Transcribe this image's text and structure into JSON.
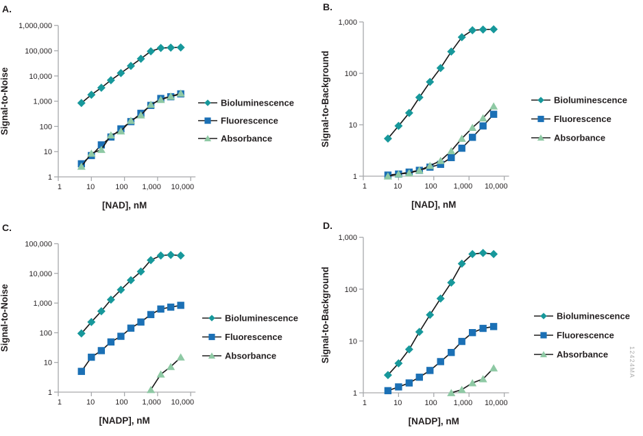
{
  "figure": {
    "watermark": "12424MA",
    "colors": {
      "bioluminescence": "#17989B",
      "fluorescence": "#1B70B5",
      "absorbance": "#8EC9A4",
      "series_line": "#1A1A1A",
      "axis_line": "#A6A8AB",
      "text": "#231F20",
      "watermark": "#ABABAB",
      "background": "#FFFFFF"
    }
  },
  "chart_data": [
    {
      "id": "A",
      "panel_label": "A.",
      "type": "line",
      "xscale": "log",
      "yscale": "log",
      "xlabel": "[NAD], nM",
      "ylabel": "Signal-to-Noise",
      "xlim": [
        1,
        20000
      ],
      "ylim": [
        1,
        1000000
      ],
      "grid": false,
      "legend_position": "right",
      "x_tick_labels": [
        "1",
        "10",
        "100",
        "1,000",
        "10,000"
      ],
      "y_tick_labels": [
        "1",
        "10",
        "100",
        "1,000",
        "10,000",
        "100,000",
        "1,000,000"
      ],
      "x": [
        5,
        10,
        20,
        39,
        78,
        156,
        313,
        625,
        1250,
        2500,
        5000
      ],
      "series": [
        {
          "name": "Bioluminescence",
          "marker": "diamond",
          "color": "#17989B",
          "values": [
            850,
            1800,
            3400,
            6800,
            13000,
            25000,
            48000,
            95000,
            128000,
            133000,
            135000
          ]
        },
        {
          "name": "Fluorescence",
          "marker": "square",
          "color": "#1B70B5",
          "values": [
            3.3,
            7,
            18.5,
            38,
            80,
            155,
            330,
            680,
            1280,
            1500,
            1950
          ]
        },
        {
          "name": "Absorbance",
          "marker": "triangle",
          "color": "#8EC9A4",
          "values": [
            2.6,
            8.5,
            12,
            45,
            65,
            170,
            280,
            740,
            1150,
            1550,
            2050
          ]
        }
      ]
    },
    {
      "id": "B",
      "panel_label": "B.",
      "type": "line",
      "xscale": "log",
      "yscale": "log",
      "xlabel": "[NAD], nM",
      "ylabel": "Signal-to-Background",
      "xlim": [
        1,
        20000
      ],
      "ylim": [
        1,
        1000
      ],
      "grid": false,
      "legend_position": "right",
      "x_tick_labels": [
        "1",
        "10",
        "100",
        "1,000",
        "10,000"
      ],
      "y_tick_labels": [
        "1",
        "10",
        "100",
        "1,000"
      ],
      "x": [
        5,
        10,
        20,
        39,
        78,
        156,
        313,
        625,
        1250,
        2500,
        5000
      ],
      "series": [
        {
          "name": "Bioluminescence",
          "marker": "diamond",
          "color": "#17989B",
          "values": [
            5.4,
            9.5,
            17,
            34,
            68,
            127,
            265,
            505,
            690,
            710,
            720
          ]
        },
        {
          "name": "Fluorescence",
          "marker": "square",
          "color": "#1B70B5",
          "values": [
            1.05,
            1.1,
            1.2,
            1.3,
            1.5,
            1.7,
            2.3,
            3.5,
            5.7,
            9.5,
            16
          ]
        },
        {
          "name": "Absorbance",
          "marker": "triangle",
          "color": "#8EC9A4",
          "values": [
            1.0,
            1.1,
            1.15,
            1.3,
            1.6,
            2.0,
            3.1,
            5.4,
            8.8,
            13.5,
            23
          ]
        }
      ]
    },
    {
      "id": "C",
      "panel_label": "C.",
      "type": "line",
      "xscale": "log",
      "yscale": "log",
      "xlabel": "[NADP], nM",
      "ylabel": "Signal-to-Noise",
      "xlim": [
        1,
        20000
      ],
      "ylim": [
        1,
        100000
      ],
      "grid": false,
      "legend_position": "right",
      "x_tick_labels": [
        "1",
        "10",
        "100",
        "1,000",
        "10,000"
      ],
      "y_tick_labels": [
        "1",
        "10",
        "100",
        "1,000",
        "10,000",
        "100,000"
      ],
      "x": [
        5,
        10,
        20,
        39,
        78,
        156,
        313,
        625,
        1250,
        2500,
        5000
      ],
      "series": [
        {
          "name": "Bioluminescence",
          "marker": "diamond",
          "color": "#17989B",
          "values": [
            95,
            230,
            530,
            1300,
            2800,
            5900,
            11500,
            28000,
            40000,
            42000,
            40000
          ]
        },
        {
          "name": "Fluorescence",
          "marker": "square",
          "color": "#1B70B5",
          "values": [
            5,
            15,
            25,
            49,
            76,
            143,
            230,
            410,
            630,
            730,
            840
          ]
        },
        {
          "name": "Absorbance",
          "marker": "triangle",
          "color": "#8EC9A4",
          "x": [
            625,
            1250,
            2500,
            5000
          ],
          "values": [
            1.2,
            4.0,
            7.2,
            15
          ]
        }
      ]
    },
    {
      "id": "D",
      "panel_label": "D.",
      "type": "line",
      "xscale": "log",
      "yscale": "log",
      "xlabel": "[NADP], nM",
      "ylabel": "Signal-to-Background",
      "xlim": [
        1,
        20000
      ],
      "ylim": [
        1,
        1000
      ],
      "grid": false,
      "legend_position": "right",
      "x_tick_labels": [
        "1",
        "10",
        "100",
        "1,000",
        "10,000"
      ],
      "y_tick_labels": [
        "1",
        "10",
        "100",
        "1,000"
      ],
      "x": [
        5,
        10,
        20,
        39,
        78,
        156,
        313,
        625,
        1250,
        2500,
        5000
      ],
      "series": [
        {
          "name": "Bioluminescence",
          "marker": "diamond",
          "color": "#17989B",
          "values": [
            2.2,
            3.7,
            6.9,
            15,
            32,
            66,
            134,
            310,
            475,
            500,
            475
          ]
        },
        {
          "name": "Fluorescence",
          "marker": "square",
          "color": "#1B70B5",
          "values": [
            1.1,
            1.3,
            1.55,
            2.0,
            2.7,
            4.0,
            6.0,
            9.8,
            14.5,
            17.5,
            19
          ]
        },
        {
          "name": "Absorbance",
          "marker": "triangle",
          "color": "#8EC9A4",
          "x": [
            313,
            625,
            1250,
            2500,
            5000
          ],
          "values": [
            1.0,
            1.15,
            1.55,
            1.85,
            3.0
          ]
        }
      ]
    }
  ]
}
